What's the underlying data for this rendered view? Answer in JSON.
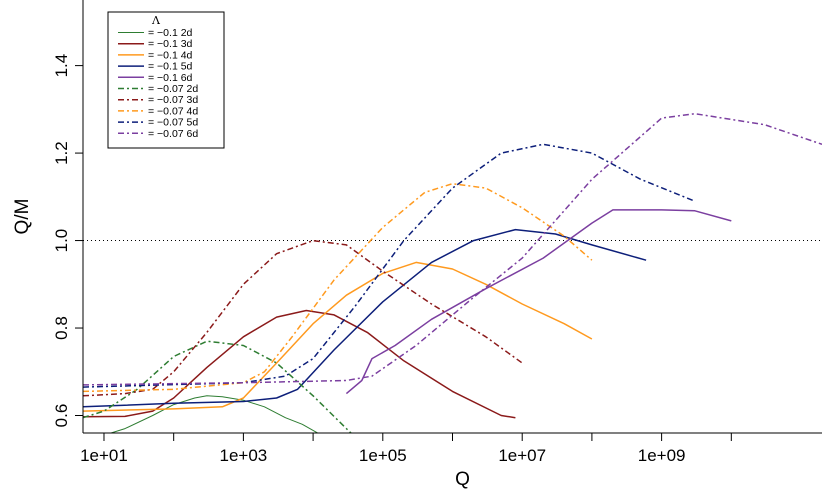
{
  "chart_data": {
    "type": "line",
    "xlabel": "Q",
    "ylabel": "Q/M",
    "x_scale": "log10",
    "xlim": [
      5,
      200000000000
    ],
    "ylim": [
      0.56,
      1.55
    ],
    "x_ticks": [
      {
        "value": 10,
        "label": "1e+01"
      },
      {
        "value": 1000,
        "label": "1e+03"
      },
      {
        "value": 100000,
        "label": "1e+05"
      },
      {
        "value": 10000000,
        "label": "1e+07"
      },
      {
        "value": 1000000000,
        "label": "1e+09"
      }
    ],
    "y_ticks": [
      {
        "value": 0.6,
        "label": "0.6"
      },
      {
        "value": 0.8,
        "label": "0.8"
      },
      {
        "value": 1.0,
        "label": "1.0"
      },
      {
        "value": 1.2,
        "label": "1.2"
      },
      {
        "value": 1.4,
        "label": "1.4"
      }
    ],
    "reference_line": {
      "y": 1.0,
      "style": "dotted"
    },
    "grid": false,
    "legend": {
      "title": "Λ",
      "placement": "top-left"
    },
    "series": [
      {
        "name": "= −0.1   2d",
        "color": "#2e7d32",
        "dash": "solid",
        "lw": 1,
        "points": [
          [
            5,
            0.53
          ],
          [
            10,
            0.555
          ],
          [
            20,
            0.57
          ],
          [
            50,
            0.6
          ],
          [
            100,
            0.625
          ],
          [
            200,
            0.64
          ],
          [
            300,
            0.645
          ],
          [
            500,
            0.643
          ],
          [
            1000,
            0.635
          ],
          [
            2000,
            0.62
          ],
          [
            4000,
            0.595
          ],
          [
            7000,
            0.58
          ],
          [
            15000,
            0.55
          ],
          [
            30000,
            0.535
          ],
          [
            50000,
            0.51
          ],
          [
            100000,
            0.49
          ]
        ]
      },
      {
        "name": "= −0.1   3d",
        "color": "#8b1a1a",
        "dash": "solid",
        "lw": 1.5,
        "points": [
          [
            5,
            0.597
          ],
          [
            20,
            0.598
          ],
          [
            50,
            0.61
          ],
          [
            100,
            0.64
          ],
          [
            300,
            0.71
          ],
          [
            1000,
            0.78
          ],
          [
            3000,
            0.825
          ],
          [
            8000,
            0.84
          ],
          [
            20000,
            0.83
          ],
          [
            60000,
            0.79
          ],
          [
            200000,
            0.725
          ],
          [
            1000000,
            0.655
          ],
          [
            5000000,
            0.6
          ],
          [
            8000000,
            0.595
          ]
        ]
      },
      {
        "name": "= −0.1   4d",
        "color": "#ff9a1f",
        "dash": "solid",
        "lw": 1.5,
        "points": [
          [
            5,
            0.61
          ],
          [
            100,
            0.615
          ],
          [
            500,
            0.62
          ],
          [
            1000,
            0.64
          ],
          [
            3000,
            0.72
          ],
          [
            10000,
            0.81
          ],
          [
            30000,
            0.875
          ],
          [
            100000,
            0.925
          ],
          [
            300000,
            0.95
          ],
          [
            1000000,
            0.935
          ],
          [
            3000000,
            0.9
          ],
          [
            10000000,
            0.855
          ],
          [
            40000000,
            0.81
          ],
          [
            100000000,
            0.775
          ]
        ]
      },
      {
        "name": "= −0.1   5d",
        "color": "#0d1f7a",
        "dash": "solid",
        "lw": 1.5,
        "points": [
          [
            5,
            0.62
          ],
          [
            100,
            0.628
          ],
          [
            1000,
            0.632
          ],
          [
            3000,
            0.64
          ],
          [
            6000,
            0.66
          ],
          [
            20000,
            0.75
          ],
          [
            100000,
            0.86
          ],
          [
            500000,
            0.95
          ],
          [
            2000000,
            1.0
          ],
          [
            8000000,
            1.025
          ],
          [
            30000000,
            1.015
          ],
          [
            100000000,
            0.99
          ],
          [
            600000000,
            0.955
          ]
        ]
      },
      {
        "name": "= −0.1   6d",
        "color": "#7b3fa0",
        "dash": "solid",
        "lw": 1.5,
        "points": [
          [
            30000,
            0.65
          ],
          [
            50000,
            0.68
          ],
          [
            70000,
            0.73
          ],
          [
            150000,
            0.76
          ],
          [
            500000,
            0.82
          ],
          [
            3000000,
            0.89
          ],
          [
            20000000,
            0.96
          ],
          [
            100000000,
            1.04
          ],
          [
            200000000,
            1.07
          ],
          [
            1000000000,
            1.07
          ],
          [
            3000000000,
            1.068
          ],
          [
            10000000000,
            1.045
          ]
        ]
      },
      {
        "name": "= −0.07 2d",
        "color": "#2e7d32",
        "dash": "6,3,2,3",
        "lw": 1.5,
        "points": [
          [
            5,
            0.595
          ],
          [
            10,
            0.61
          ],
          [
            30,
            0.66
          ],
          [
            100,
            0.735
          ],
          [
            300,
            0.77
          ],
          [
            1000,
            0.76
          ],
          [
            3000,
            0.72
          ],
          [
            10000,
            0.645
          ],
          [
            30000,
            0.57
          ],
          [
            100000,
            0.49
          ]
        ]
      },
      {
        "name": "= −0.07 3d",
        "color": "#8b1a1a",
        "dash": "6,3,2,3",
        "lw": 1.5,
        "points": [
          [
            5,
            0.645
          ],
          [
            20,
            0.65
          ],
          [
            50,
            0.66
          ],
          [
            100,
            0.7
          ],
          [
            300,
            0.79
          ],
          [
            1000,
            0.9
          ],
          [
            3000,
            0.97
          ],
          [
            10000,
            1.0
          ],
          [
            30000,
            0.99
          ],
          [
            100000,
            0.93
          ],
          [
            500000,
            0.855
          ],
          [
            3000000,
            0.78
          ],
          [
            10000000,
            0.72
          ]
        ]
      },
      {
        "name": "= −0.07 4d",
        "color": "#ff9a1f",
        "dash": "6,3,2,3",
        "lw": 1.5,
        "points": [
          [
            5,
            0.655
          ],
          [
            100,
            0.66
          ],
          [
            1000,
            0.675
          ],
          [
            2000,
            0.7
          ],
          [
            5000,
            0.78
          ],
          [
            20000,
            0.91
          ],
          [
            100000,
            1.03
          ],
          [
            400000,
            1.11
          ],
          [
            1000000,
            1.13
          ],
          [
            3000000,
            1.12
          ],
          [
            10000000,
            1.075
          ],
          [
            40000000,
            1.01
          ],
          [
            100000000,
            0.955
          ]
        ]
      },
      {
        "name": "= −0.07 5d",
        "color": "#0d1f7a",
        "dash": "6,3,2,3",
        "lw": 1.5,
        "points": [
          [
            5,
            0.665
          ],
          [
            1000,
            0.675
          ],
          [
            4000,
            0.69
          ],
          [
            10000,
            0.73
          ],
          [
            40000,
            0.85
          ],
          [
            200000,
            1.0
          ],
          [
            1000000,
            1.12
          ],
          [
            5000000,
            1.2
          ],
          [
            20000000,
            1.22
          ],
          [
            100000000,
            1.2
          ],
          [
            500000000,
            1.14
          ],
          [
            3000000000,
            1.09
          ]
        ]
      },
      {
        "name": "= −0.07 6d",
        "color": "#7b3fa0",
        "dash": "6,3,2,3",
        "lw": 1.5,
        "points": [
          [
            5,
            0.67
          ],
          [
            1000,
            0.675
          ],
          [
            30000,
            0.68
          ],
          [
            70000,
            0.69
          ],
          [
            300000,
            0.76
          ],
          [
            2000000,
            0.87
          ],
          [
            10000000,
            0.96
          ],
          [
            100000000,
            1.14
          ],
          [
            1000000000,
            1.28
          ],
          [
            3000000000,
            1.29
          ],
          [
            30000000000,
            1.265
          ],
          [
            200000000000,
            1.22
          ]
        ]
      }
    ]
  }
}
